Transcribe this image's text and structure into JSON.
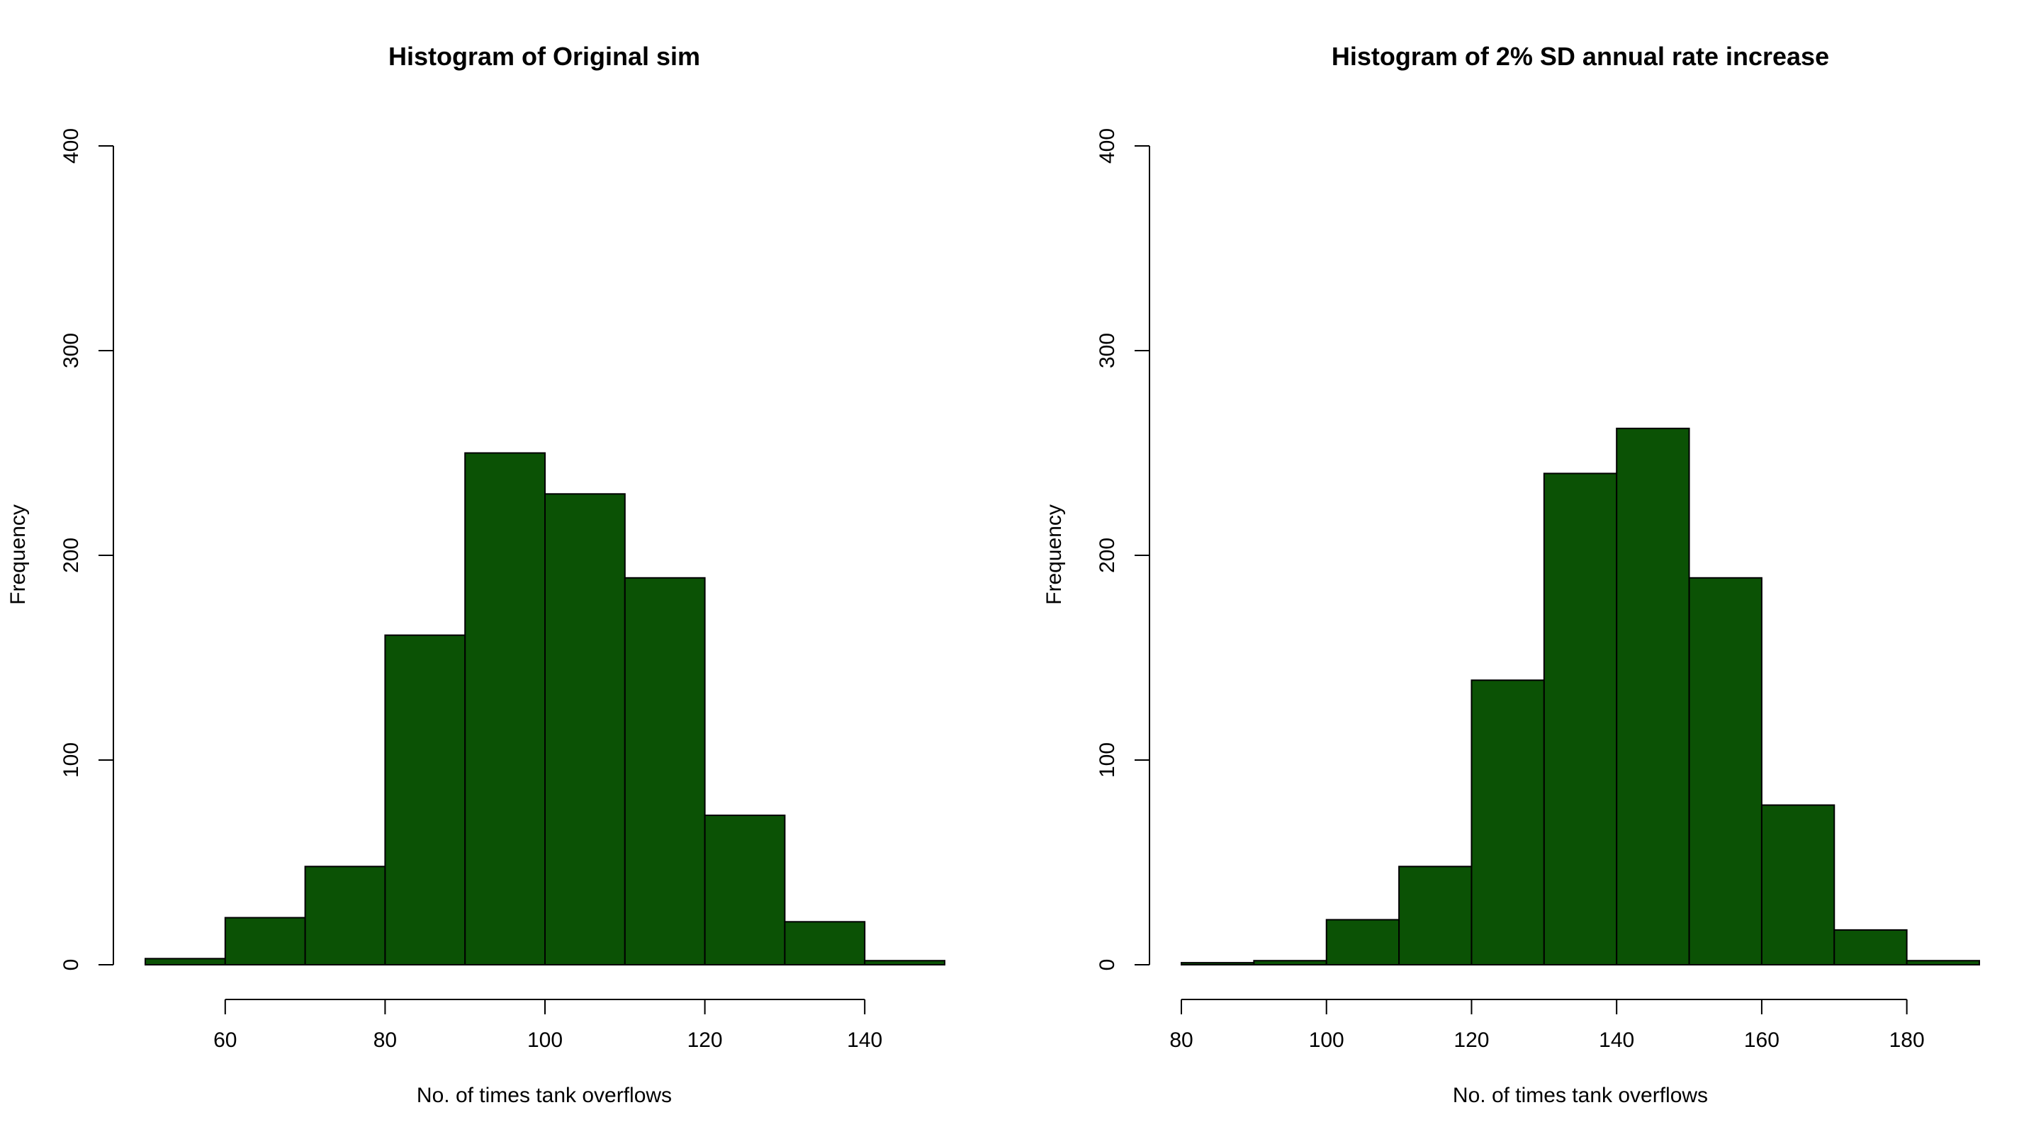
{
  "chart_data": [
    {
      "type": "bar",
      "title": "Histogram of Original sim",
      "xlabel": "No. of times tank overflows",
      "ylabel": "Frequency",
      "bin_edges": [
        50,
        60,
        70,
        80,
        90,
        100,
        110,
        120,
        130,
        140,
        150
      ],
      "values": [
        3,
        23,
        48,
        161,
        250,
        230,
        189,
        73,
        21,
        2
      ],
      "xlim": [
        50,
        150
      ],
      "ylim": [
        0,
        400
      ],
      "x_ticks": [
        60,
        80,
        100,
        120,
        140
      ],
      "y_ticks": [
        0,
        100,
        200,
        300,
        400
      ],
      "bar_color": "#0b5205",
      "grid": false
    },
    {
      "type": "bar",
      "title": "Histogram of 2% SD annual rate increase",
      "xlabel": "No. of times tank overflows",
      "ylabel": "Frequency",
      "bin_edges": [
        80,
        90,
        100,
        110,
        120,
        130,
        140,
        150,
        160,
        170,
        180,
        190
      ],
      "values": [
        1,
        2,
        22,
        48,
        139,
        240,
        262,
        189,
        78,
        17,
        2
      ],
      "xlim": [
        80,
        190
      ],
      "ylim": [
        0,
        400
      ],
      "x_ticks": [
        80,
        100,
        120,
        140,
        160,
        180
      ],
      "y_ticks": [
        0,
        100,
        200,
        300,
        400
      ],
      "bar_color": "#0b5205",
      "grid": false
    }
  ]
}
